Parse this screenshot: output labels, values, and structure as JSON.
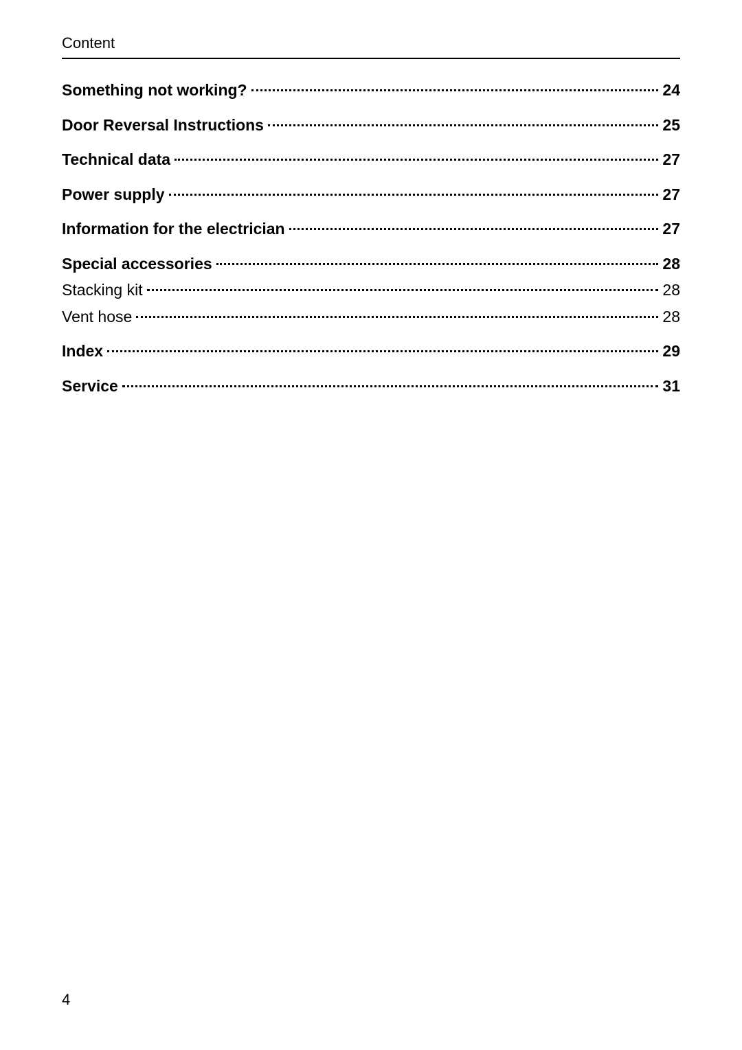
{
  "header_title": "Content",
  "page_number": "4",
  "toc_entries": [
    {
      "label": "Something not working?",
      "page": "24",
      "bold": true,
      "spaced": false,
      "sub": false
    },
    {
      "label": "Door Reversal Instructions",
      "page": "25",
      "bold": true,
      "spaced": true,
      "sub": false
    },
    {
      "label": "Technical data",
      "page": "27",
      "bold": true,
      "spaced": true,
      "sub": false
    },
    {
      "label": "Power supply",
      "page": "27",
      "bold": true,
      "spaced": true,
      "sub": false
    },
    {
      "label": "Information for the electrician",
      "page": "27",
      "bold": true,
      "spaced": true,
      "sub": false
    },
    {
      "label": "Special accessories",
      "page": "28",
      "bold": true,
      "spaced": true,
      "sub": false
    },
    {
      "label": "Stacking kit",
      "page": "28",
      "bold": false,
      "spaced": false,
      "sub": true
    },
    {
      "label": "Vent hose",
      "page": "28",
      "bold": false,
      "spaced": false,
      "sub": true
    },
    {
      "label": "Index",
      "page": "29",
      "bold": true,
      "spaced": true,
      "sub": false
    },
    {
      "label": "Service",
      "page": "31",
      "bold": true,
      "spaced": true,
      "sub": false
    }
  ]
}
